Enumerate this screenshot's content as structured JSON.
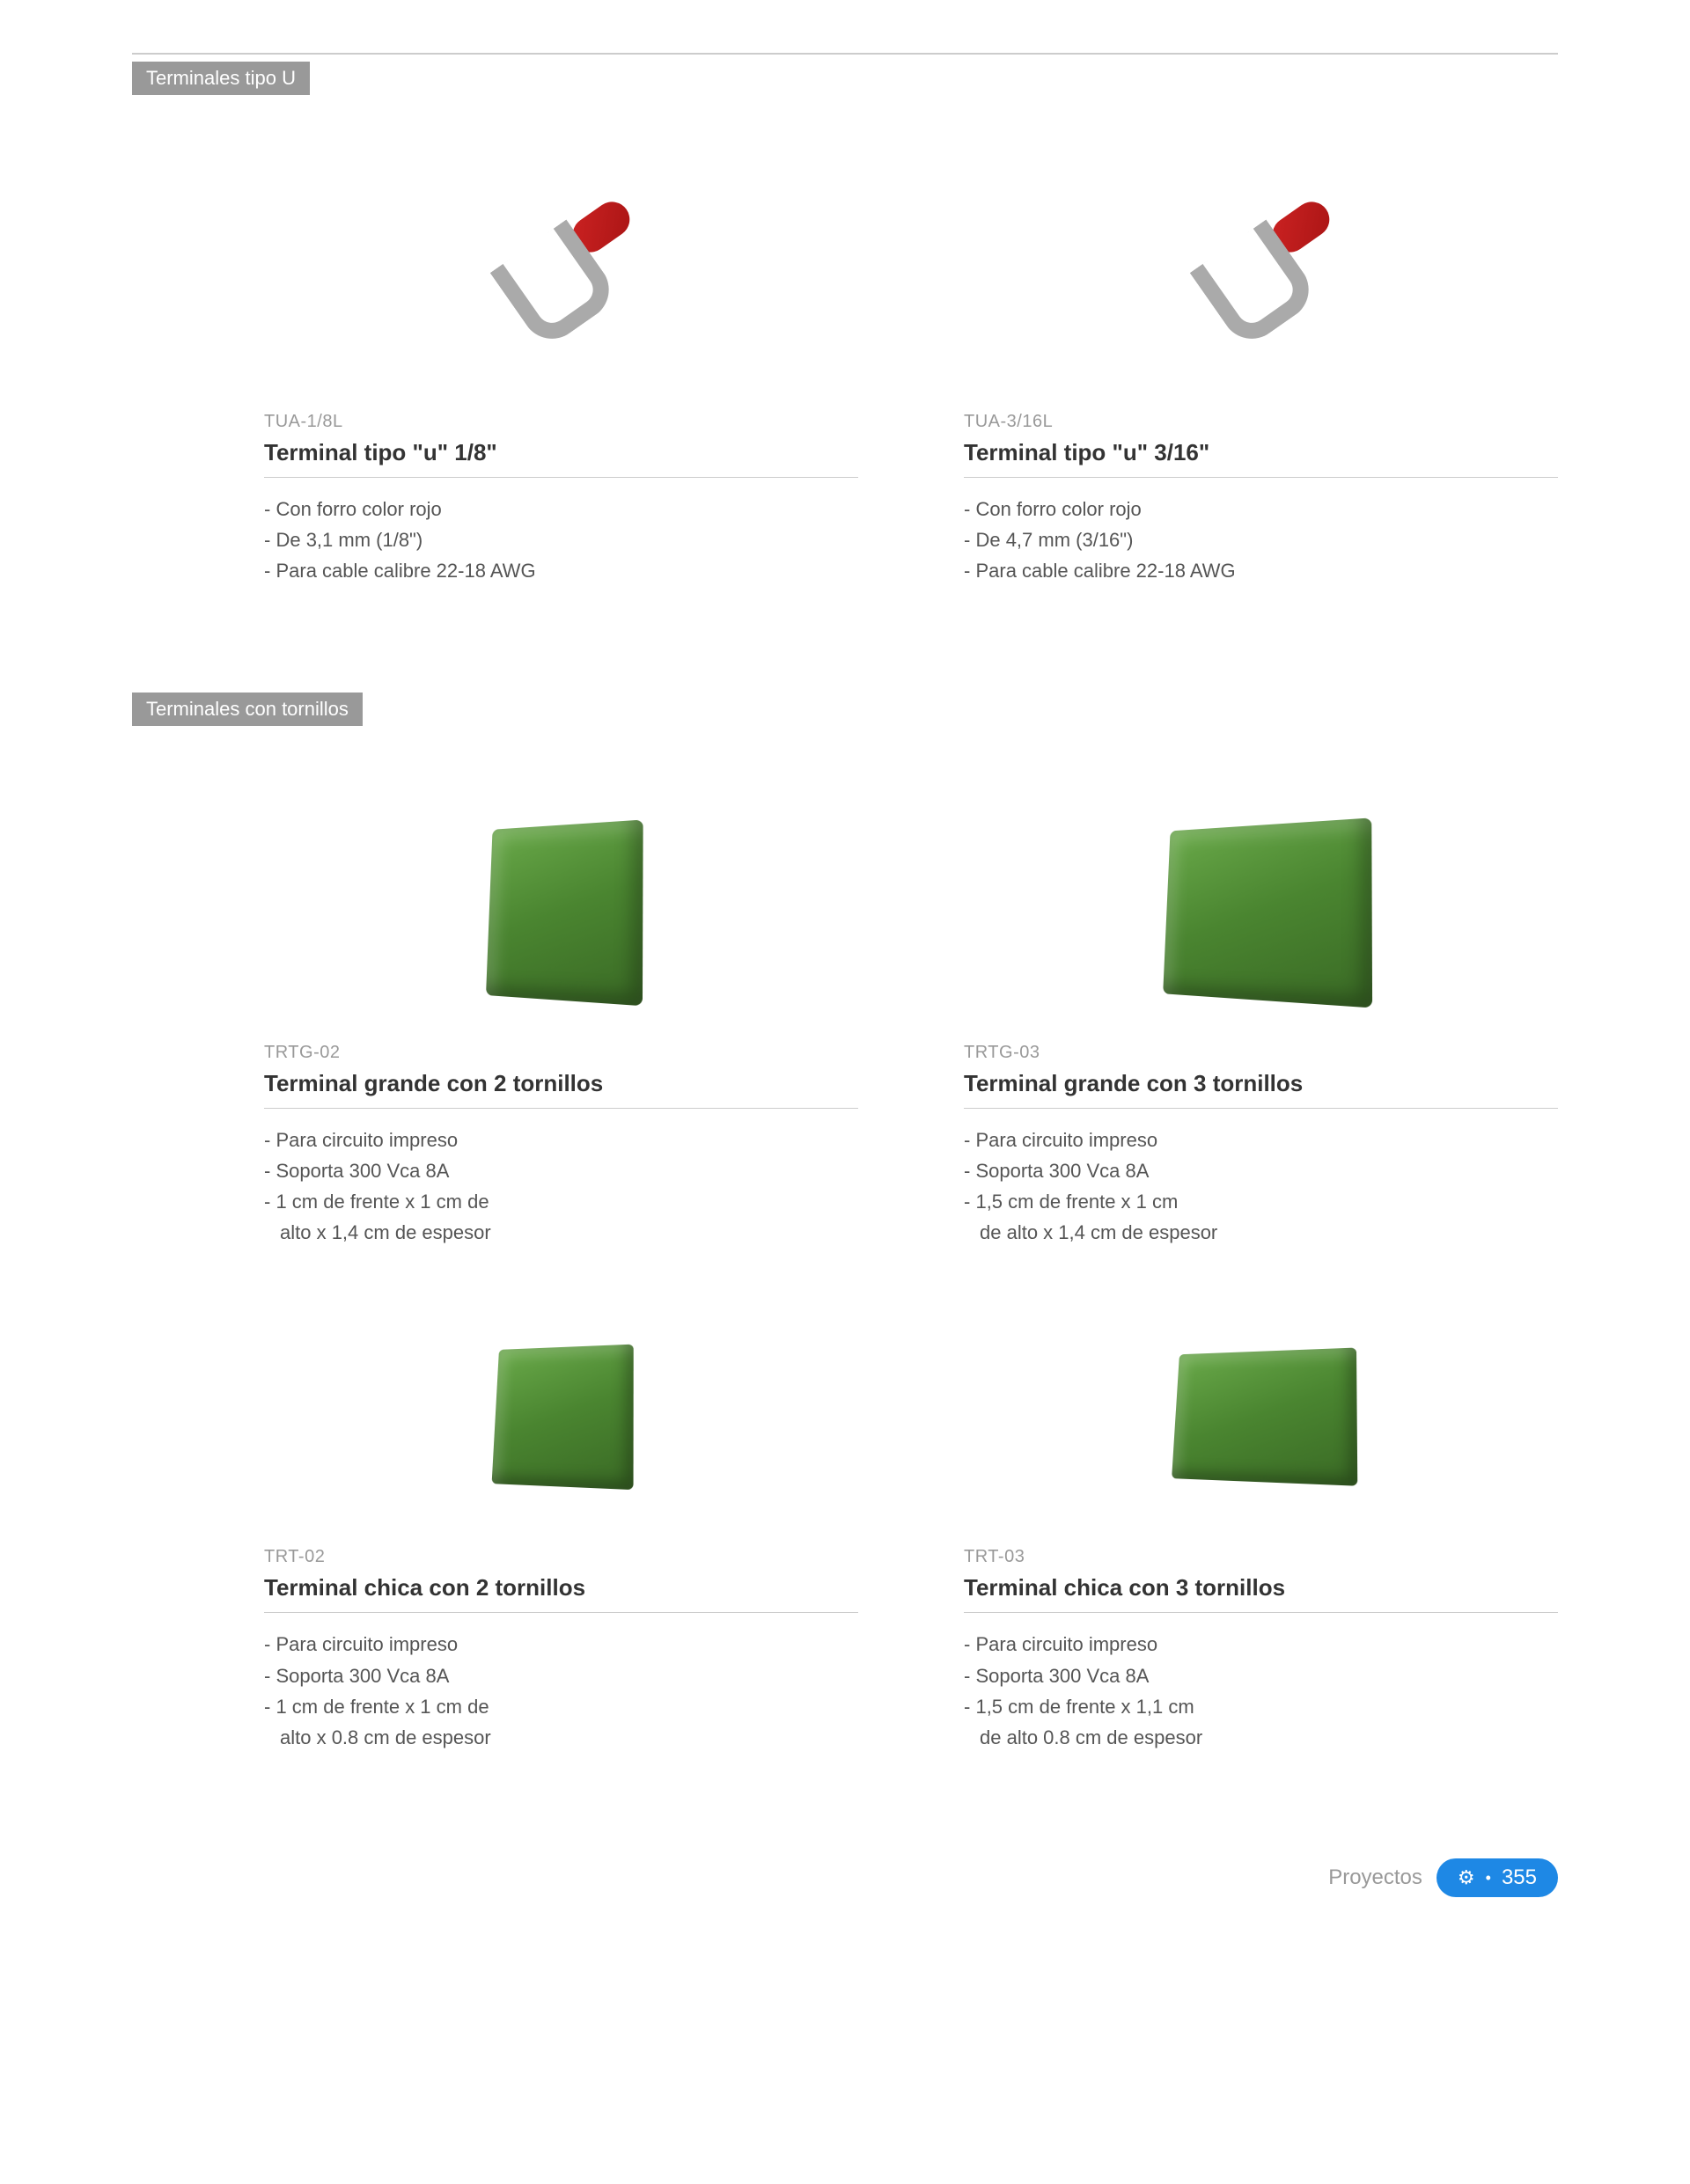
{
  "section1": {
    "title": "Terminales tipo U",
    "products": [
      {
        "sku": "TUA-1/8L",
        "title": "Terminal tipo \"u\" 1/8\"",
        "specs": [
          {
            "text": "Con forro color rojo",
            "cont": false
          },
          {
            "text": "De 3,1 mm (1/8\")",
            "cont": false
          },
          {
            "text": "Para cable calibre 22-18 AWG",
            "cont": false
          }
        ],
        "shape": "u-terminal"
      },
      {
        "sku": "TUA-3/16L",
        "title": "Terminal tipo \"u\" 3/16\"",
        "specs": [
          {
            "text": "Con forro color rojo",
            "cont": false
          },
          {
            "text": "De 4,7 mm (3/16\")",
            "cont": false
          },
          {
            "text": "Para cable calibre 22-18 AWG",
            "cont": false
          }
        ],
        "shape": "u-terminal"
      }
    ]
  },
  "section2": {
    "title": "Terminales con tornillos",
    "products": [
      {
        "sku": "TRTG-02",
        "title": "Terminal grande con 2 tornillos",
        "specs": [
          {
            "text": "Para circuito impreso",
            "cont": false
          },
          {
            "text": "Soporta 300 Vca 8A",
            "cont": false
          },
          {
            "text": "1 cm de frente x 1 cm de",
            "cont": false
          },
          {
            "text": "alto x 1,4 cm de espesor",
            "cont": true
          }
        ],
        "shape": "screw-terminal green-2"
      },
      {
        "sku": "TRTG-03",
        "title": "Terminal grande con 3 tornillos",
        "specs": [
          {
            "text": "Para circuito impreso",
            "cont": false
          },
          {
            "text": "Soporta 300 Vca 8A",
            "cont": false
          },
          {
            "text": "1,5 cm de frente x 1 cm",
            "cont": false
          },
          {
            "text": "de alto x 1,4 cm de espesor",
            "cont": true
          }
        ],
        "shape": "screw-terminal green-3"
      },
      {
        "sku": "TRT-02",
        "title": "Terminal chica con 2 tornillos",
        "specs": [
          {
            "text": "Para circuito impreso",
            "cont": false
          },
          {
            "text": "Soporta 300 Vca 8A",
            "cont": false
          },
          {
            "text": "1 cm de frente x 1 cm de",
            "cont": false
          },
          {
            "text": "alto x 0.8 cm de espesor",
            "cont": true
          }
        ],
        "shape": "screw-terminal green-2-small"
      },
      {
        "sku": "TRT-03",
        "title": "Terminal chica con 3 tornillos",
        "specs": [
          {
            "text": "Para circuito impreso",
            "cont": false
          },
          {
            "text": "Soporta 300 Vca 8A",
            "cont": false
          },
          {
            "text": "1,5 cm de frente x 1,1 cm",
            "cont": false
          },
          {
            "text": "de alto 0.8 cm de espesor",
            "cont": true
          }
        ],
        "shape": "screw-terminal green-3-small"
      }
    ]
  },
  "footer": {
    "label": "Proyectos",
    "page": "355"
  },
  "colors": {
    "section_bg": "#999999",
    "section_text": "#ffffff",
    "sku_color": "#999999",
    "title_color": "#333333",
    "spec_color": "#555555",
    "divider": "#cccccc",
    "badge_bg": "#1e88e5",
    "badge_text": "#ffffff",
    "terminal_green": "#4a8530",
    "terminal_red": "#cc2222"
  }
}
